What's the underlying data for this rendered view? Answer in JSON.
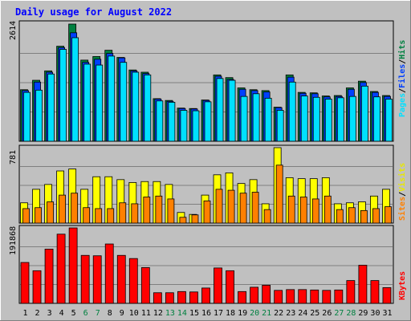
{
  "colors": {
    "background": "#c0c0c0",
    "title": "#0000ff",
    "hits": "#008040",
    "files": "#0040ff",
    "pages": "#00e0ff",
    "visits": "#ffff00",
    "sites": "#ff8000",
    "kbytes": "#ff0000",
    "weekend_label": "#008040",
    "weekday_label": "#000000"
  },
  "chart_data": {
    "type": "bar",
    "title": "Daily usage for August 2022",
    "categories": [
      "1",
      "2",
      "3",
      "4",
      "5",
      "6",
      "7",
      "8",
      "9",
      "10",
      "11",
      "12",
      "13",
      "14",
      "15",
      "16",
      "17",
      "18",
      "19",
      "20",
      "21",
      "22",
      "23",
      "24",
      "25",
      "26",
      "27",
      "28",
      "29",
      "30",
      "31"
    ],
    "weekend_days": [
      "6",
      "7",
      "13",
      "14",
      "20",
      "21",
      "27",
      "28"
    ],
    "panels": [
      {
        "name": "hits_files_pages",
        "ymax_label": "2614",
        "ymax": 2614,
        "legend": [
          "Pages",
          "Files",
          "Hits"
        ],
        "series": [
          {
            "name": "Hits",
            "values": [
              1150,
              1360,
              1570,
              2120,
              2614,
              1810,
              1890,
              2030,
              1870,
              1590,
              1540,
              950,
              910,
              740,
              730,
              920,
              1480,
              1420,
              1190,
              1150,
              1130,
              760,
              1480,
              1090,
              1080,
              1010,
              1020,
              1190,
              1340,
              1110,
              1020
            ]
          },
          {
            "name": "Files",
            "values": [
              1130,
              1320,
              1540,
              2090,
              2420,
              1760,
              1830,
              1960,
              1860,
              1570,
              1510,
              940,
              890,
              730,
              720,
              910,
              1450,
              1380,
              1160,
              1130,
              1100,
              750,
              1430,
              1070,
              1060,
              990,
              1000,
              1160,
              1310,
              1090,
              1000
            ]
          },
          {
            "name": "Pages",
            "values": [
              1090,
              1140,
              1500,
              2050,
              2310,
              1720,
              1700,
              1900,
              1760,
              1540,
              1480,
              900,
              870,
              690,
              680,
              880,
              1400,
              1360,
              1000,
              1060,
              960,
              690,
              1320,
              1010,
              980,
              940,
              970,
              1000,
              1230,
              990,
              940
            ]
          }
        ]
      },
      {
        "name": "visits_sites",
        "ymax_label": "781",
        "ymax": 781,
        "legend": [
          "Sites",
          "Visits"
        ],
        "series": [
          {
            "name": "Visits",
            "values": [
              210,
              350,
              400,
              540,
              560,
              350,
              480,
              480,
              450,
              420,
              430,
              430,
              400,
              110,
              90,
              290,
              500,
              520,
              410,
              450,
              200,
              781,
              470,
              460,
              460,
              470,
              200,
              210,
              220,
              280,
              350
            ]
          },
          {
            "name": "Sites",
            "values": [
              150,
              160,
              220,
              290,
              310,
              160,
              150,
              150,
              210,
              200,
              270,
              280,
              250,
              60,
              85,
              230,
              350,
              340,
              310,
              320,
              140,
              600,
              280,
              270,
              250,
              280,
              140,
              160,
              130,
              150,
              170
            ]
          }
        ]
      },
      {
        "name": "kbytes",
        "ymax_label": "191868",
        "ymax": 191868,
        "legend": [
          "KBytes"
        ],
        "series": [
          {
            "name": "KBytes",
            "values": [
              104000,
              83000,
              138000,
              176000,
              191868,
              122000,
              121000,
              151000,
              122000,
              114000,
              91000,
              27000,
              27000,
              30000,
              29000,
              39000,
              90000,
              83000,
              30000,
              41000,
              46000,
              33000,
              35000,
              35000,
              34000,
              33000,
              34000,
              58000,
              97000,
              58000,
              40000
            ]
          }
        ]
      }
    ]
  }
}
